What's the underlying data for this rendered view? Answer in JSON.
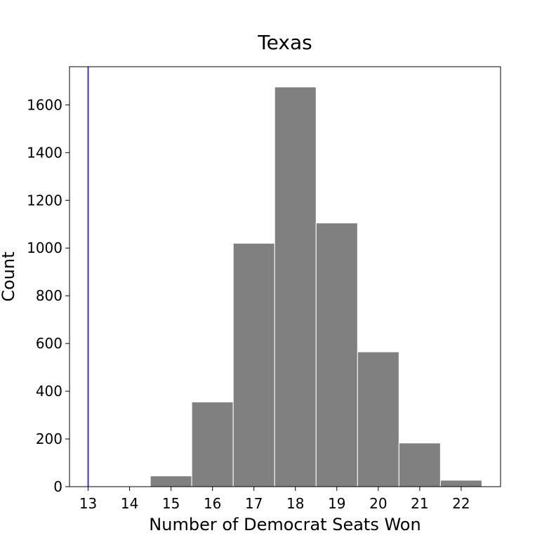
{
  "chart_data": {
    "type": "bar",
    "title": "Texas",
    "xlabel": "Number of Democrat Seats Won",
    "ylabel": "Count",
    "bins": [
      {
        "center": 15,
        "value": 45
      },
      {
        "center": 16,
        "value": 355
      },
      {
        "center": 17,
        "value": 1020
      },
      {
        "center": 18,
        "value": 1675
      },
      {
        "center": 19,
        "value": 1105
      },
      {
        "center": 20,
        "value": 565
      },
      {
        "center": 21,
        "value": 183
      },
      {
        "center": 22,
        "value": 27
      }
    ],
    "bin_width": 1,
    "reference_line": {
      "x": 13,
      "color": "#3333dd"
    },
    "bar_color": "#808080",
    "bar_edge_color": "#ffffff",
    "xlim": [
      12.55,
      22.95
    ],
    "ylim": [
      0,
      1760
    ],
    "xticks": [
      "13",
      "14",
      "15",
      "16",
      "17",
      "18",
      "19",
      "20",
      "21",
      "22"
    ],
    "yticks": [
      "0",
      "200",
      "400",
      "600",
      "800",
      "1000",
      "1200",
      "1400",
      "1600"
    ],
    "grid": false,
    "legend": "none"
  }
}
